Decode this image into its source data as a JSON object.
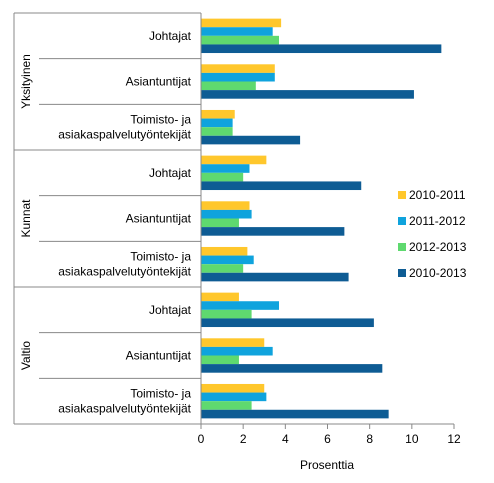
{
  "chart_data": {
    "type": "bar",
    "orientation": "horizontal",
    "xlabel": "Prosenttia",
    "xlim": [
      0,
      12
    ],
    "xticks": [
      "0",
      "2",
      "4",
      "6",
      "8",
      "10",
      "12"
    ],
    "grid": false,
    "legend_position": "right",
    "groups": [
      {
        "name": "Yksityinen",
        "categories": [
          {
            "lines": [
              "Johtajat"
            ]
          },
          {
            "lines": [
              "Asiantuntijat"
            ]
          },
          {
            "lines": [
              "Toimisto- ja",
              "asiakaspalvelutyöntekijät"
            ]
          }
        ]
      },
      {
        "name": "Kunnat",
        "categories": [
          {
            "lines": [
              "Johtajat"
            ]
          },
          {
            "lines": [
              "Asiantuntijat"
            ]
          },
          {
            "lines": [
              "Toimisto- ja",
              "asiakaspalvelutyöntekijät"
            ]
          }
        ]
      },
      {
        "name": "Valtio",
        "categories": [
          {
            "lines": [
              "Johtajat"
            ]
          },
          {
            "lines": [
              "Asiantuntijat"
            ]
          },
          {
            "lines": [
              "Toimisto- ja",
              "asiakaspalvelutyöntekijät"
            ]
          }
        ]
      }
    ],
    "series": [
      {
        "name": "2010-2011",
        "color": "#ffc72c",
        "values": [
          3.8,
          3.5,
          1.6,
          3.1,
          2.3,
          2.2,
          1.8,
          3.0,
          3.0
        ]
      },
      {
        "name": "2011-2012",
        "color": "#0fa3dd",
        "values": [
          3.4,
          3.5,
          1.5,
          2.3,
          2.4,
          2.5,
          3.7,
          3.4,
          3.1
        ]
      },
      {
        "name": "2012-2013",
        "color": "#5fd96f",
        "values": [
          3.7,
          2.6,
          1.5,
          2.0,
          1.8,
          2.0,
          2.4,
          1.8,
          2.4
        ]
      },
      {
        "name": "2010-2013",
        "color": "#0e5c94",
        "values": [
          11.4,
          10.1,
          4.7,
          7.6,
          6.8,
          7.0,
          8.2,
          8.6,
          8.9
        ]
      }
    ]
  }
}
